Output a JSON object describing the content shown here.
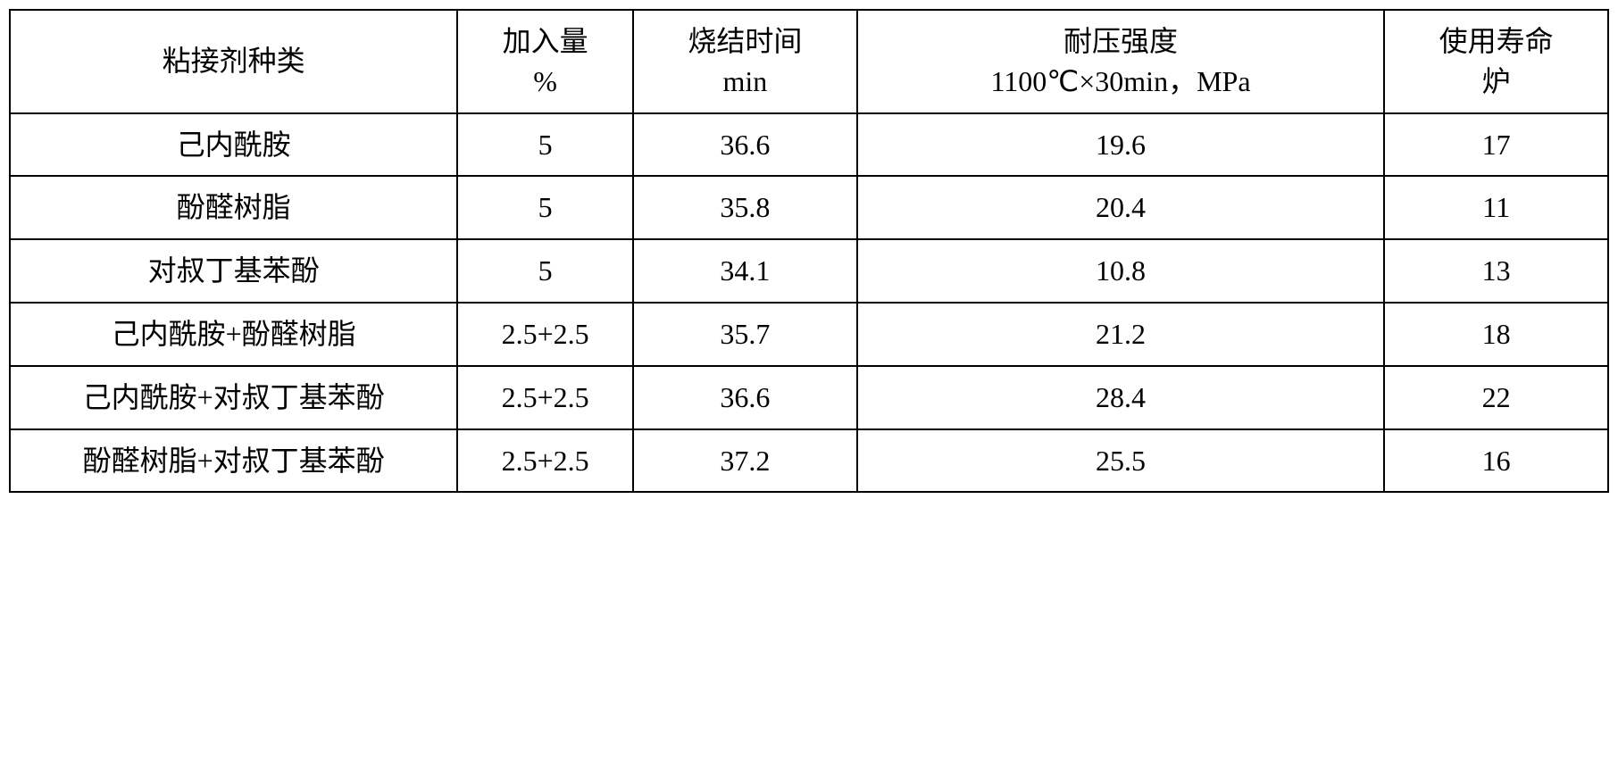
{
  "table": {
    "type": "table",
    "background_color": "#ffffff",
    "border_color": "#000000",
    "border_width": 2,
    "text_color": "#000000",
    "font_size": 32,
    "font_family": "SimSun",
    "columns": [
      {
        "header_line1": "粘接剂种类",
        "header_line2": "",
        "width_pct": 28
      },
      {
        "header_line1": "加入量",
        "header_line2": "%",
        "width_pct": 11
      },
      {
        "header_line1": "烧结时间",
        "header_line2": "min",
        "width_pct": 14
      },
      {
        "header_line1": "耐压强度",
        "header_line2": "1100℃×30min，MPa",
        "width_pct": 33
      },
      {
        "header_line1": "使用寿命",
        "header_line2": "炉",
        "width_pct": 14
      }
    ],
    "rows": [
      [
        "己内酰胺",
        "5",
        "36.6",
        "19.6",
        "17"
      ],
      [
        "酚醛树脂",
        "5",
        "35.8",
        "20.4",
        "11"
      ],
      [
        "对叔丁基苯酚",
        "5",
        "34.1",
        "10.8",
        "13"
      ],
      [
        "己内酰胺+酚醛树脂",
        "2.5+2.5",
        "35.7",
        "21.2",
        "18"
      ],
      [
        "己内酰胺+对叔丁基苯酚",
        "2.5+2.5",
        "36.6",
        "28.4",
        "22"
      ],
      [
        "酚醛树脂+对叔丁基苯酚",
        "2.5+2.5",
        "37.2",
        "25.5",
        "16"
      ]
    ]
  }
}
